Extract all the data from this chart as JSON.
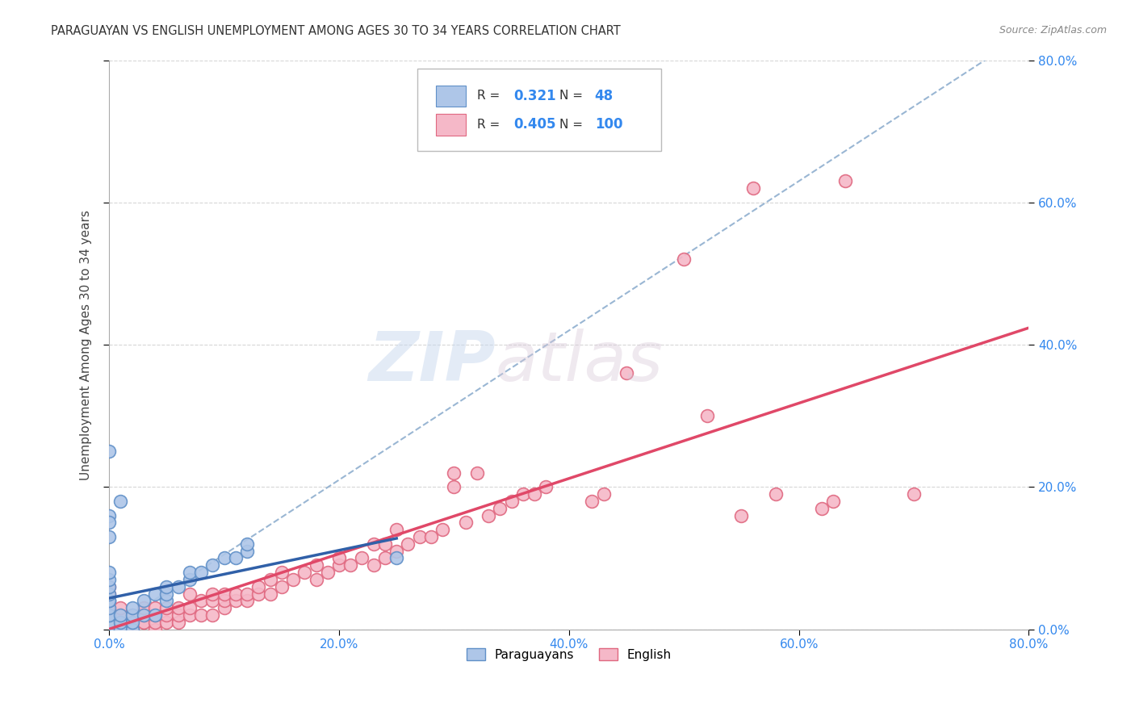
{
  "title": "PARAGUAYAN VS ENGLISH UNEMPLOYMENT AMONG AGES 30 TO 34 YEARS CORRELATION CHART",
  "source": "Source: ZipAtlas.com",
  "ylabel": "Unemployment Among Ages 30 to 34 years",
  "x_min": 0.0,
  "x_max": 0.8,
  "y_min": 0.0,
  "y_max": 0.8,
  "x_ticks": [
    0.0,
    0.2,
    0.4,
    0.6,
    0.8
  ],
  "y_ticks": [
    0.0,
    0.2,
    0.4,
    0.6,
    0.8
  ],
  "x_tick_labels": [
    "0.0%",
    "20.0%",
    "40.0%",
    "60.0%",
    "80.0%"
  ],
  "y_tick_labels_right": [
    "0.0%",
    "20.0%",
    "40.0%",
    "60.0%",
    "80.0%"
  ],
  "paraguayan_color": "#aec6e8",
  "english_color": "#f5b8c8",
  "paraguayan_edge": "#6090c8",
  "english_edge": "#e06880",
  "trend_paraguayan_color": "#3060a8",
  "trend_english_color": "#e04868",
  "trend_dashed_color": "#88aacc",
  "background_color": "#ffffff",
  "grid_color": "#cccccc",
  "watermark_zip": "ZIP",
  "watermark_atlas": "atlas",
  "r_paraguayan": 0.321,
  "n_paraguayan": 48,
  "r_english": 0.405,
  "n_english": 100,
  "paraguayan_x": [
    0.0,
    0.0,
    0.0,
    0.0,
    0.0,
    0.0,
    0.0,
    0.0,
    0.0,
    0.0,
    0.0,
    0.0,
    0.0,
    0.0,
    0.0,
    0.0,
    0.0,
    0.0,
    0.0,
    0.0,
    0.01,
    0.01,
    0.01,
    0.01,
    0.02,
    0.02,
    0.02,
    0.02,
    0.03,
    0.03,
    0.04,
    0.04,
    0.05,
    0.05,
    0.05,
    0.06,
    0.07,
    0.07,
    0.08,
    0.09,
    0.1,
    0.11,
    0.12,
    0.12,
    0.0,
    0.0,
    0.01,
    0.25
  ],
  "paraguayan_y": [
    0.0,
    0.0,
    0.0,
    0.0,
    0.0,
    0.01,
    0.01,
    0.01,
    0.01,
    0.02,
    0.02,
    0.03,
    0.04,
    0.04,
    0.05,
    0.06,
    0.07,
    0.08,
    0.13,
    0.16,
    0.0,
    0.0,
    0.01,
    0.02,
    0.0,
    0.01,
    0.02,
    0.03,
    0.02,
    0.04,
    0.02,
    0.05,
    0.04,
    0.05,
    0.06,
    0.06,
    0.07,
    0.08,
    0.08,
    0.09,
    0.1,
    0.1,
    0.11,
    0.12,
    0.25,
    0.15,
    0.18,
    0.1
  ],
  "english_x": [
    0.0,
    0.0,
    0.0,
    0.0,
    0.0,
    0.0,
    0.0,
    0.0,
    0.0,
    0.0,
    0.0,
    0.0,
    0.0,
    0.0,
    0.01,
    0.01,
    0.01,
    0.01,
    0.01,
    0.01,
    0.02,
    0.02,
    0.02,
    0.02,
    0.03,
    0.03,
    0.03,
    0.03,
    0.04,
    0.04,
    0.04,
    0.04,
    0.05,
    0.05,
    0.05,
    0.06,
    0.06,
    0.06,
    0.07,
    0.07,
    0.07,
    0.08,
    0.08,
    0.09,
    0.09,
    0.09,
    0.1,
    0.1,
    0.1,
    0.11,
    0.11,
    0.12,
    0.12,
    0.13,
    0.13,
    0.14,
    0.14,
    0.15,
    0.15,
    0.16,
    0.17,
    0.18,
    0.18,
    0.19,
    0.2,
    0.2,
    0.21,
    0.22,
    0.23,
    0.23,
    0.24,
    0.24,
    0.25,
    0.25,
    0.26,
    0.27,
    0.28,
    0.29,
    0.3,
    0.3,
    0.31,
    0.32,
    0.33,
    0.34,
    0.35,
    0.36,
    0.37,
    0.38,
    0.42,
    0.43,
    0.45,
    0.5,
    0.52,
    0.55,
    0.56,
    0.58,
    0.62,
    0.63,
    0.64,
    0.7
  ],
  "english_y": [
    0.0,
    0.0,
    0.0,
    0.0,
    0.0,
    0.01,
    0.01,
    0.02,
    0.02,
    0.03,
    0.03,
    0.04,
    0.05,
    0.06,
    0.0,
    0.01,
    0.01,
    0.02,
    0.02,
    0.03,
    0.0,
    0.01,
    0.01,
    0.02,
    0.01,
    0.01,
    0.02,
    0.03,
    0.0,
    0.01,
    0.02,
    0.03,
    0.01,
    0.02,
    0.03,
    0.01,
    0.02,
    0.03,
    0.02,
    0.03,
    0.05,
    0.02,
    0.04,
    0.02,
    0.04,
    0.05,
    0.03,
    0.04,
    0.05,
    0.04,
    0.05,
    0.04,
    0.05,
    0.05,
    0.06,
    0.05,
    0.07,
    0.06,
    0.08,
    0.07,
    0.08,
    0.07,
    0.09,
    0.08,
    0.09,
    0.1,
    0.09,
    0.1,
    0.09,
    0.12,
    0.1,
    0.12,
    0.11,
    0.14,
    0.12,
    0.13,
    0.13,
    0.14,
    0.2,
    0.22,
    0.15,
    0.22,
    0.16,
    0.17,
    0.18,
    0.19,
    0.19,
    0.2,
    0.18,
    0.19,
    0.36,
    0.52,
    0.3,
    0.16,
    0.62,
    0.19,
    0.17,
    0.18,
    0.63,
    0.19
  ],
  "dashed_intercept": 0.0,
  "dashed_slope": 1.05,
  "eng_trend_intercept": -0.01,
  "eng_trend_slope": 0.39,
  "par_trend_x0": 0.0,
  "par_trend_x1": 0.25,
  "par_trend_intercept": 0.005,
  "par_trend_slope": 0.42
}
